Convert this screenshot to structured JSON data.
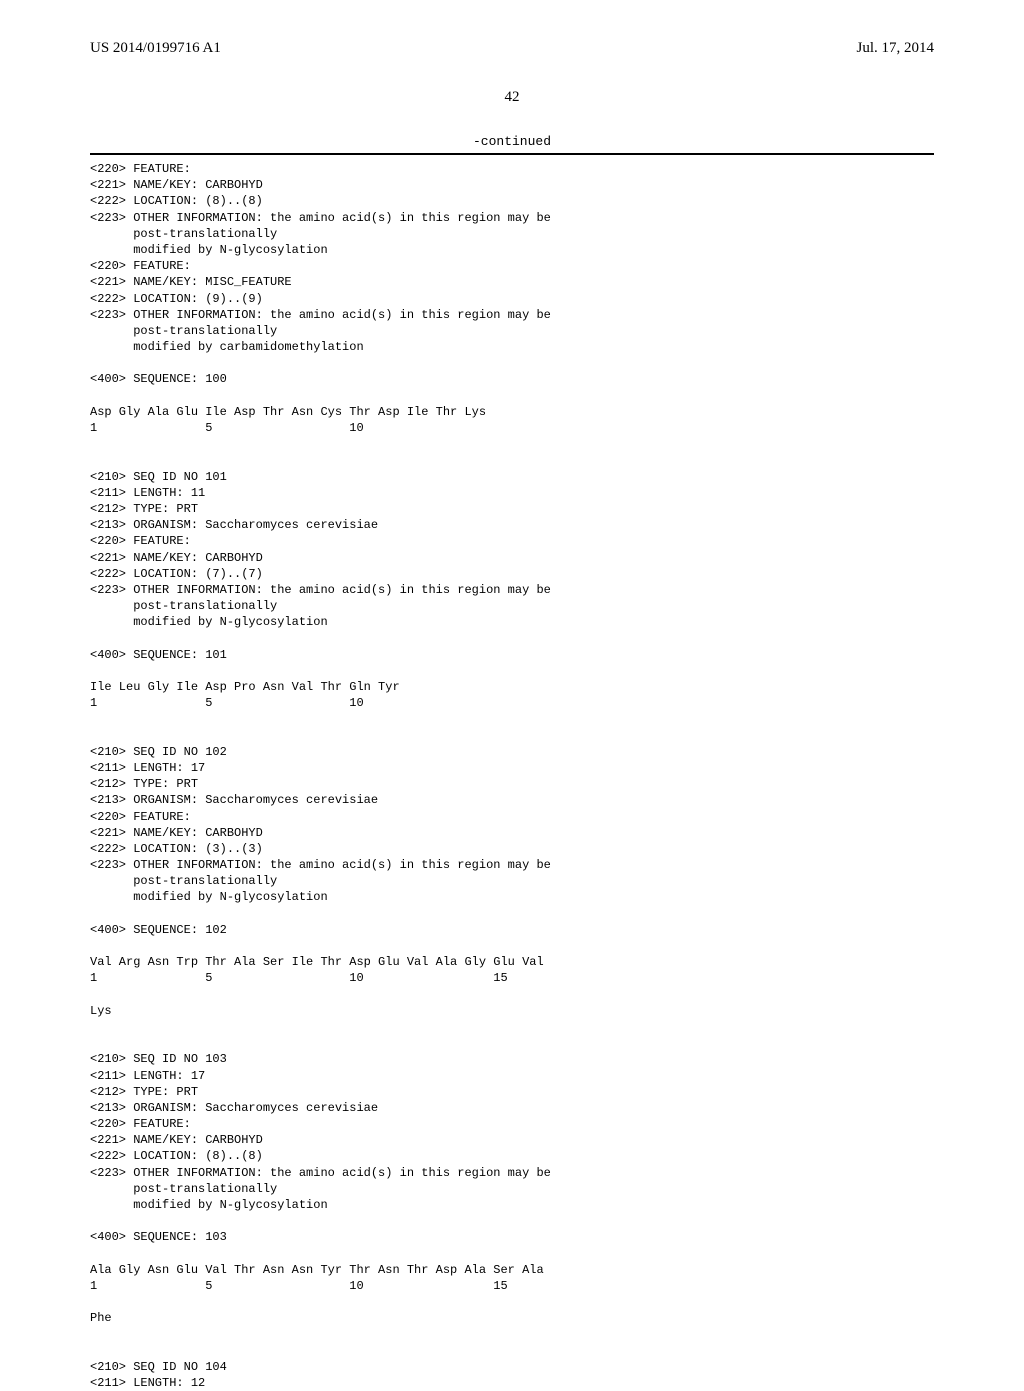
{
  "header": {
    "publication_number": "US 2014/0199716 A1",
    "publication_date": "Jul. 17, 2014"
  },
  "page_number": "42",
  "continued_label": "-continued",
  "entries": [
    {
      "features": [
        "<220> FEATURE:",
        "<221> NAME/KEY: CARBOHYD",
        "<222> LOCATION: (8)..(8)",
        "<223> OTHER INFORMATION: the amino acid(s) in this region may be",
        "      post-translationally",
        "      modified by N-glycosylation",
        "<220> FEATURE:",
        "<221> NAME/KEY: MISC_FEATURE",
        "<222> LOCATION: (9)..(9)",
        "<223> OTHER INFORMATION: the amino acid(s) in this region may be",
        "      post-translationally",
        "      modified by carbamidomethylation"
      ],
      "sequence_header": "<400> SEQUENCE: 100",
      "sequence_lines": [
        "Asp Gly Ala Glu Ile Asp Thr Asn Cys Thr Asp Ile Thr Lys",
        "1               5                   10"
      ]
    },
    {
      "features": [
        "<210> SEQ ID NO 101",
        "<211> LENGTH: 11",
        "<212> TYPE: PRT",
        "<213> ORGANISM: Saccharomyces cerevisiae",
        "<220> FEATURE:",
        "<221> NAME/KEY: CARBOHYD",
        "<222> LOCATION: (7)..(7)",
        "<223> OTHER INFORMATION: the amino acid(s) in this region may be",
        "      post-translationally",
        "      modified by N-glycosylation"
      ],
      "sequence_header": "<400> SEQUENCE: 101",
      "sequence_lines": [
        "Ile Leu Gly Ile Asp Pro Asn Val Thr Gln Tyr",
        "1               5                   10"
      ]
    },
    {
      "features": [
        "<210> SEQ ID NO 102",
        "<211> LENGTH: 17",
        "<212> TYPE: PRT",
        "<213> ORGANISM: Saccharomyces cerevisiae",
        "<220> FEATURE:",
        "<221> NAME/KEY: CARBOHYD",
        "<222> LOCATION: (3)..(3)",
        "<223> OTHER INFORMATION: the amino acid(s) in this region may be",
        "      post-translationally",
        "      modified by N-glycosylation"
      ],
      "sequence_header": "<400> SEQUENCE: 102",
      "sequence_lines": [
        "Val Arg Asn Trp Thr Ala Ser Ile Thr Asp Glu Val Ala Gly Glu Val",
        "1               5                   10                  15",
        "",
        "Lys"
      ]
    },
    {
      "features": [
        "<210> SEQ ID NO 103",
        "<211> LENGTH: 17",
        "<212> TYPE: PRT",
        "<213> ORGANISM: Saccharomyces cerevisiae",
        "<220> FEATURE:",
        "<221> NAME/KEY: CARBOHYD",
        "<222> LOCATION: (8)..(8)",
        "<223> OTHER INFORMATION: the amino acid(s) in this region may be",
        "      post-translationally",
        "      modified by N-glycosylation"
      ],
      "sequence_header": "<400> SEQUENCE: 103",
      "sequence_lines": [
        "Ala Gly Asn Glu Val Thr Asn Asn Tyr Thr Asn Thr Asp Ala Ser Ala",
        "1               5                   10                  15",
        "",
        "Phe"
      ]
    },
    {
      "features": [
        "<210> SEQ ID NO 104",
        "<211> LENGTH: 12"
      ],
      "sequence_header": "",
      "sequence_lines": []
    }
  ]
}
